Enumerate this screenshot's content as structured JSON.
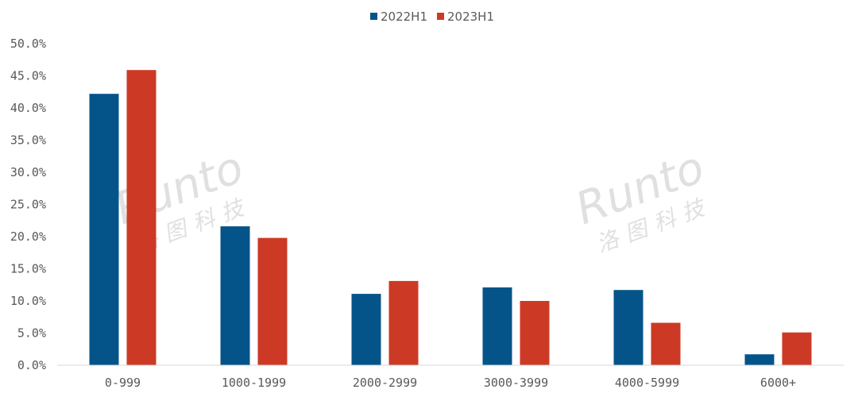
{
  "chart_data": {
    "type": "bar",
    "categories": [
      "0-999",
      "1000-1999",
      "2000-2999",
      "3000-3999",
      "4000-5999",
      "6000+"
    ],
    "series": [
      {
        "name": "2022H1",
        "color": "#04548a",
        "values": [
          42.2,
          21.6,
          11.1,
          12.1,
          11.7,
          1.7
        ]
      },
      {
        "name": "2023H1",
        "color": "#cc3a26",
        "values": [
          45.9,
          19.8,
          13.1,
          10.0,
          6.6,
          5.1
        ]
      }
    ],
    "yticks": [
      "0.0%",
      "5.0%",
      "10.0%",
      "15.0%",
      "20.0%",
      "25.0%",
      "30.0%",
      "35.0%",
      "40.0%",
      "45.0%",
      "50.0%"
    ],
    "ylim": [
      0,
      50
    ],
    "grid": false,
    "legend_position": "top-center",
    "title": "",
    "xlabel": "",
    "ylabel": ""
  },
  "watermark": {
    "latin": "Runto",
    "cjk": "洛图科技"
  }
}
